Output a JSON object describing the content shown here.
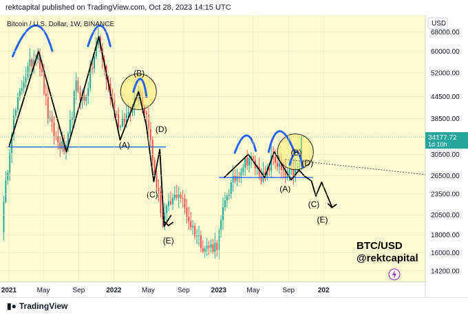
{
  "header": {
    "published_text": "rektcapital published on TradingView.com, Oct 28, 2023 14:15 UTC"
  },
  "footer": {
    "brand": "TradingView",
    "logo_icon": "tradingview-logo-icon"
  },
  "colors": {
    "background": "#fafbd0",
    "up": "#26a69a",
    "down": "#ef5350",
    "support": "#2962ff",
    "pattern_line": "#000000",
    "arc": "#2962ff",
    "circle": "#f5ea6b",
    "price_tag": "#26a69a"
  },
  "chart_data": {
    "type": "candlestick",
    "title": "Bitcoin / U.S. Dollar, 1W, BINANCE",
    "currency": "USD",
    "y_scale": "log",
    "ylim": [
      13200,
      76000
    ],
    "xlim": [
      "2020-12-01",
      "2024-12-20"
    ],
    "price_ticks": [
      68000,
      60000,
      52000,
      44500,
      38500,
      30500,
      26500,
      23500,
      20500,
      18000,
      16000,
      14200
    ],
    "x_ticks": [
      {
        "label": "2021",
        "date": "2021-01-01"
      },
      {
        "label": "May",
        "date": "2021-05-01"
      },
      {
        "label": "Sep",
        "date": "2021-09-01"
      },
      {
        "label": "2022",
        "date": "2022-01-01"
      },
      {
        "label": "May",
        "date": "2022-05-01"
      },
      {
        "label": "Sep",
        "date": "2022-09-01"
      },
      {
        "label": "2023",
        "date": "2023-01-01"
      },
      {
        "label": "May",
        "date": "2023-05-01"
      },
      {
        "label": "Sep",
        "date": "2023-09-01"
      },
      {
        "label": "202",
        "date": "2024-01-01"
      }
    ],
    "last_price": {
      "value": 34177.72,
      "label": "34177.72",
      "countdown": "1d 10h"
    },
    "annotation_text": {
      "pair": "BTC/USD",
      "handle": "@rektcapital"
    },
    "anchors": [
      {
        "date": "2020-12-07",
        "price": 19000
      },
      {
        "date": "2021-01-10",
        "price": 36000
      },
      {
        "date": "2021-02-21",
        "price": 50000
      },
      {
        "date": "2021-04-11",
        "price": 60500
      },
      {
        "date": "2021-05-20",
        "price": 38000
      },
      {
        "date": "2021-06-20",
        "price": 33000
      },
      {
        "date": "2021-07-20",
        "price": 31000
      },
      {
        "date": "2021-08-22",
        "price": 48000
      },
      {
        "date": "2021-09-20",
        "price": 43000
      },
      {
        "date": "2021-11-08",
        "price": 65000
      },
      {
        "date": "2021-12-12",
        "price": 48000
      },
      {
        "date": "2022-01-23",
        "price": 36000
      },
      {
        "date": "2022-03-28",
        "price": 46500
      },
      {
        "date": "2022-05-01",
        "price": 38000
      },
      {
        "date": "2022-05-15",
        "price": 29500
      },
      {
        "date": "2022-06-19",
        "price": 20000
      },
      {
        "date": "2022-08-14",
        "price": 24000
      },
      {
        "date": "2022-09-25",
        "price": 19300
      },
      {
        "date": "2022-11-13",
        "price": 16500
      },
      {
        "date": "2022-12-25",
        "price": 16800
      },
      {
        "date": "2023-01-29",
        "price": 23500
      },
      {
        "date": "2023-03-19",
        "price": 28000
      },
      {
        "date": "2023-04-16",
        "price": 30000
      },
      {
        "date": "2023-06-11",
        "price": 25800
      },
      {
        "date": "2023-07-09",
        "price": 30200
      },
      {
        "date": "2023-08-20",
        "price": 26000
      },
      {
        "date": "2023-10-08",
        "price": 27800
      },
      {
        "date": "2023-10-22",
        "price": 34177.72
      }
    ],
    "support_lines": [
      {
        "from": {
          "date": "2020-12-28",
          "price": 32000
        },
        "to": {
          "date": "2022-07-01",
          "price": 32000
        }
      },
      {
        "from": {
          "date": "2023-01-01",
          "price": 26200
        },
        "to": {
          "date": "2023-11-25",
          "price": 26200
        }
      }
    ],
    "dotted_line": {
      "from": {
        "date": "2023-08-20",
        "price": 29500
      },
      "to": {
        "date": "2024-12-20",
        "price": 26700
      }
    },
    "pattern_lines": [
      [
        {
          "date": "2021-01-01",
          "price": 32000
        },
        {
          "date": "2021-04-14",
          "price": 60000
        },
        {
          "date": "2021-07-20",
          "price": 31000
        },
        {
          "date": "2021-11-10",
          "price": 66000
        },
        {
          "date": "2022-01-23",
          "price": 33500
        },
        {
          "date": "2022-03-28",
          "price": 46000
        },
        {
          "date": "2022-04-24",
          "price": 37000
        },
        {
          "date": "2022-05-20",
          "price": 25500
        },
        {
          "date": "2022-06-10",
          "price": 31500
        },
        {
          "date": "2022-06-25",
          "price": 19000
        },
        {
          "date": "2022-07-20",
          "price": 20500
        }
      ],
      [
        {
          "date": "2023-01-20",
          "price": 26200
        },
        {
          "date": "2023-04-14",
          "price": 30500
        },
        {
          "date": "2023-06-10",
          "price": 26200
        },
        {
          "date": "2023-07-13",
          "price": 31000
        },
        {
          "date": "2023-09-10",
          "price": 25800
        },
        {
          "date": "2023-10-08",
          "price": 27500
        },
        {
          "date": "2023-10-25",
          "price": 26500
        },
        {
          "date": "2023-11-20",
          "price": 25600
        },
        {
          "date": "2023-12-05",
          "price": 23200
        },
        {
          "date": "2023-12-25",
          "price": 25400
        },
        {
          "date": "2024-01-30",
          "price": 21600
        }
      ]
    ],
    "arrow_heads": [
      {
        "date": "2022-07-10",
        "price": 19200
      },
      {
        "date": "2024-01-30",
        "price": 21600
      }
    ],
    "arcs": [
      {
        "from": {
          "date": "2021-01-14",
          "price": 58000
        },
        "peak": {
          "date": "2021-04-01",
          "price": 71000
        },
        "to": {
          "date": "2021-06-01",
          "price": 60000
        }
      },
      {
        "from": {
          "date": "2021-10-03",
          "price": 62000
        },
        "peak": {
          "date": "2021-11-14",
          "price": 71000
        },
        "to": {
          "date": "2021-12-20",
          "price": 62000
        }
      },
      {
        "from": {
          "date": "2022-03-10",
          "price": 46000
        },
        "peak": {
          "date": "2022-04-05",
          "price": 50000
        },
        "to": {
          "date": "2022-04-25",
          "price": 44500
        }
      },
      {
        "from": {
          "date": "2023-02-26",
          "price": 30800
        },
        "peak": {
          "date": "2023-04-07",
          "price": 34500
        },
        "to": {
          "date": "2023-05-10",
          "price": 31200
        }
      },
      {
        "from": {
          "date": "2023-06-24",
          "price": 31000
        },
        "peak": {
          "date": "2023-08-01",
          "price": 35500
        },
        "to": {
          "date": "2023-09-20",
          "price": 31200
        }
      },
      {
        "from": {
          "date": "2023-09-05",
          "price": 28500
        },
        "peak": {
          "date": "2023-09-30",
          "price": 31000
        },
        "to": {
          "date": "2023-10-20",
          "price": 28000
        }
      }
    ],
    "highlight_circles": [
      {
        "date": "2022-03-28",
        "price": 46000
      },
      {
        "date": "2023-09-25",
        "price": 31000
      }
    ],
    "wave_labels": [
      {
        "text": "(B)",
        "date": "2022-03-30",
        "price": 51000
      },
      {
        "text": "(A)",
        "date": "2022-02-07",
        "price": 31800
      },
      {
        "text": "(D)",
        "date": "2022-06-15",
        "price": 35300
      },
      {
        "text": "(C)",
        "date": "2022-05-15",
        "price": 23000
      },
      {
        "text": "(E)",
        "date": "2022-07-10",
        "price": 17000
      },
      {
        "text": "(B)",
        "date": "2023-09-28",
        "price": 30300
      },
      {
        "text": "(A)",
        "date": "2023-08-20",
        "price": 23900
      },
      {
        "text": "(D)",
        "date": "2023-11-06",
        "price": 28300
      },
      {
        "text": "(C)",
        "date": "2023-11-28",
        "price": 21600
      },
      {
        "text": "(E)",
        "date": "2023-12-28",
        "price": 19500
      }
    ]
  }
}
